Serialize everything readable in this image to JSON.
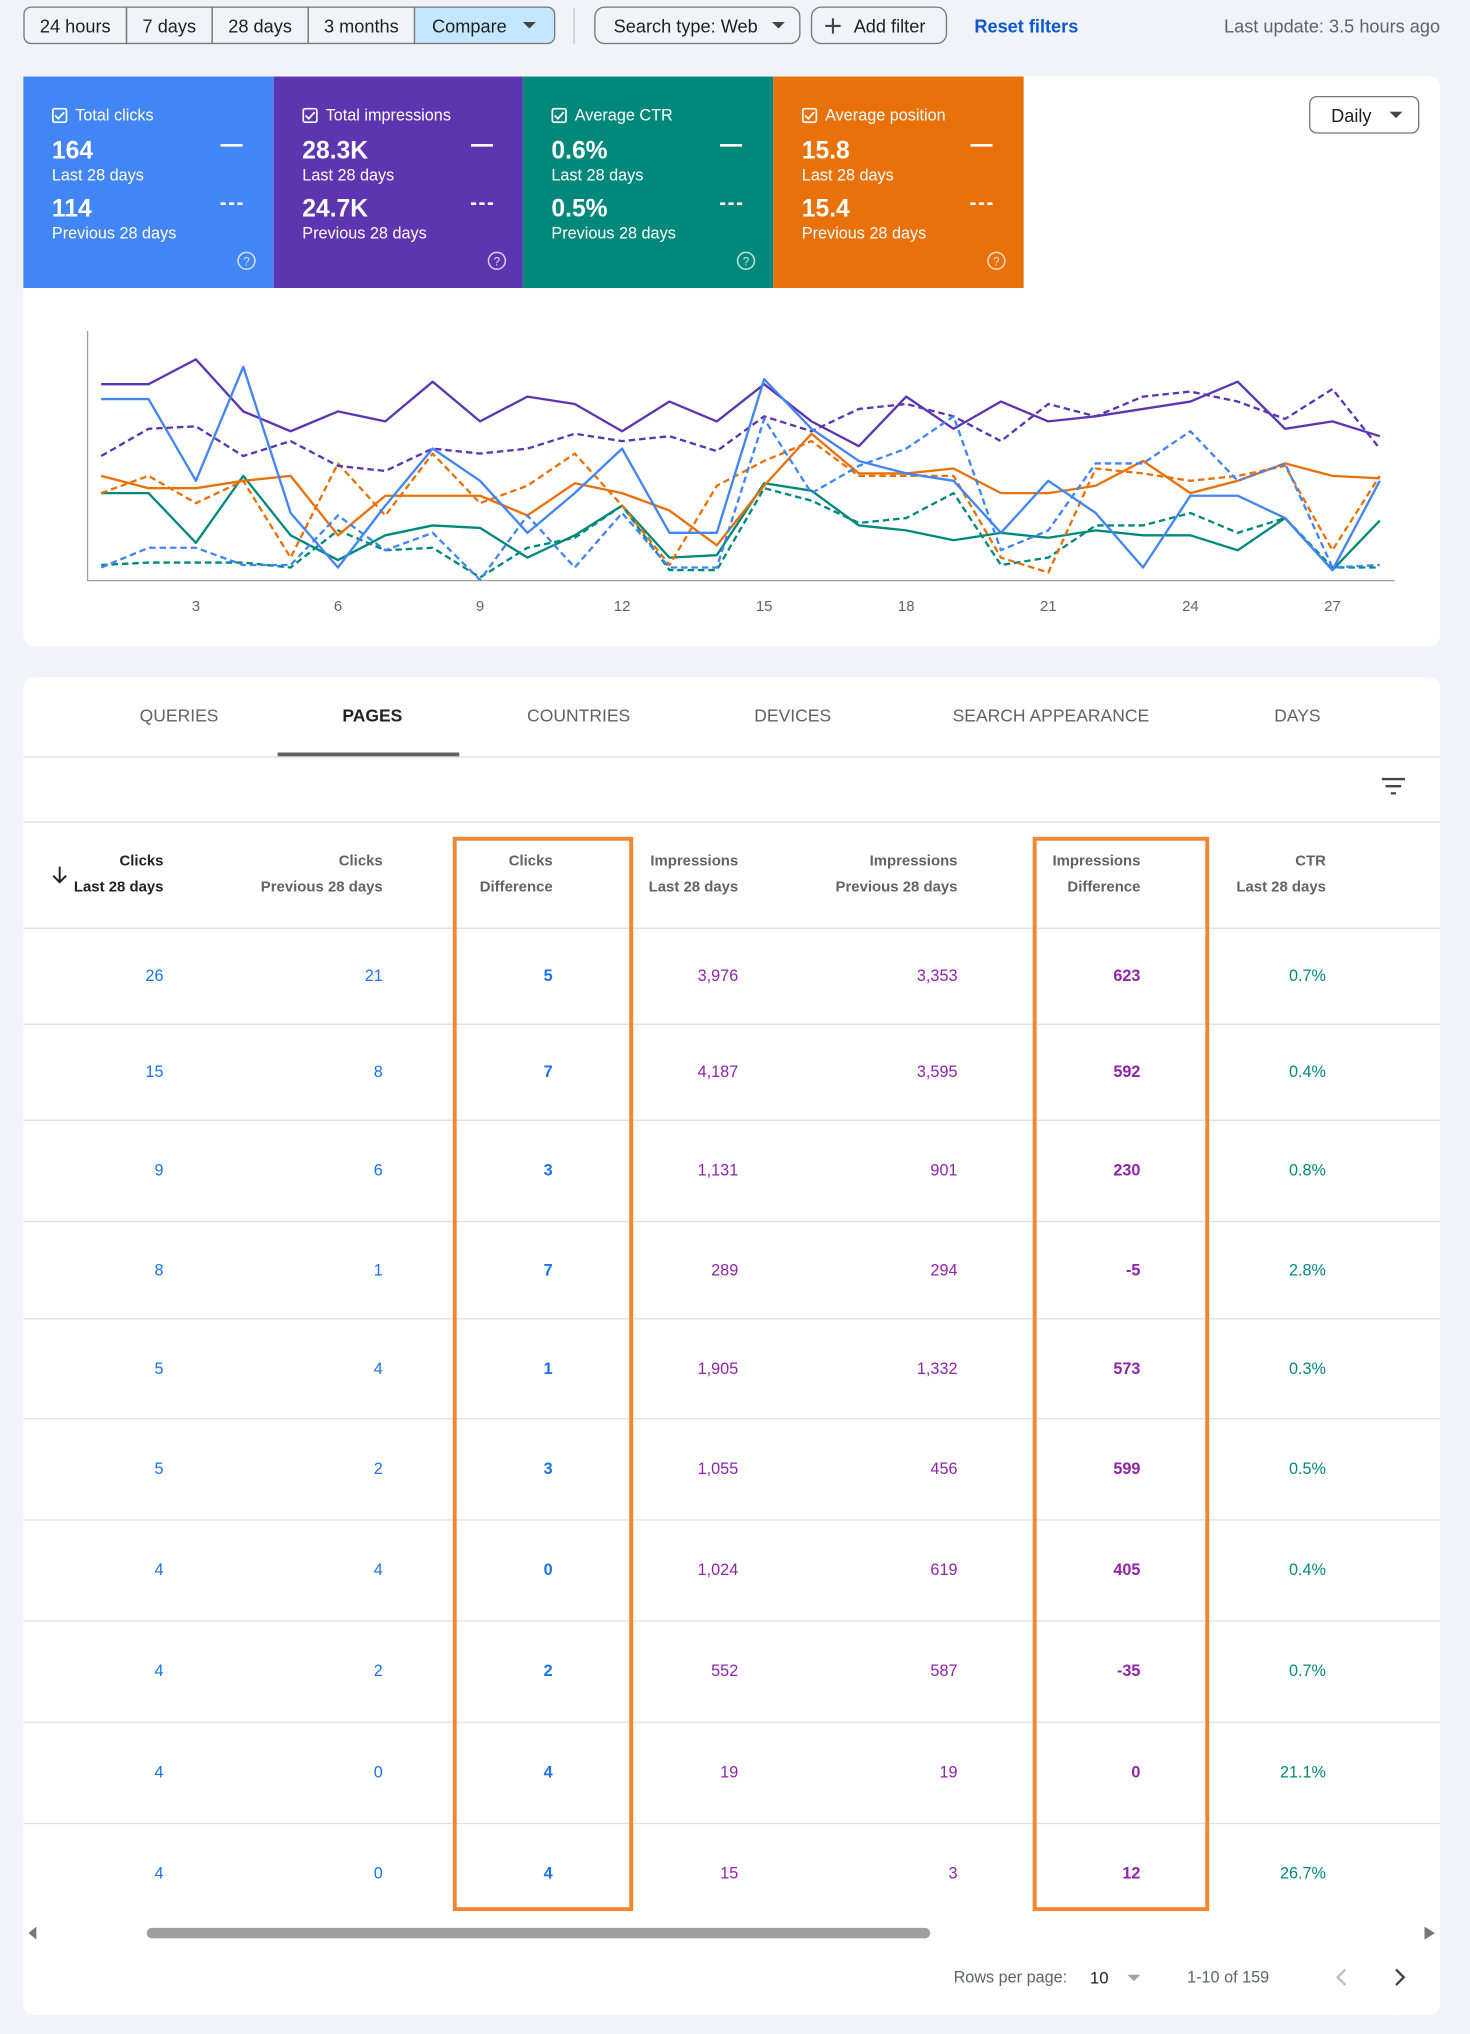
{
  "toolbar": {
    "ranges": [
      "24 hours",
      "7 days",
      "28 days",
      "3 months",
      "Compare"
    ],
    "active_range": 4,
    "search_type": "Search type: Web",
    "add_filter": "Add filter",
    "reset": "Reset filters",
    "last_update": "Last update: 3.5 hours ago"
  },
  "cards": [
    {
      "title": "Total clicks",
      "current": "164",
      "current_label": "Last 28 days",
      "previous": "114",
      "previous_label": "Previous 28 days",
      "color": "#4285f4"
    },
    {
      "title": "Total impressions",
      "current": "28.3K",
      "current_label": "Last 28 days",
      "previous": "24.7K",
      "previous_label": "Previous 28 days",
      "color": "#5e35b1"
    },
    {
      "title": "Average CTR",
      "current": "0.6%",
      "current_label": "Last 28 days",
      "previous": "0.5%",
      "previous_label": "Previous 28 days",
      "color": "#00897b"
    },
    {
      "title": "Average position",
      "current": "15.8",
      "current_label": "Last 28 days",
      "previous": "15.4",
      "previous_label": "Previous 28 days",
      "color": "#e8710a"
    }
  ],
  "granularity": "Daily",
  "chart_data": {
    "type": "line",
    "x": [
      1,
      2,
      3,
      4,
      5,
      6,
      7,
      8,
      9,
      10,
      11,
      12,
      13,
      14,
      15,
      16,
      17,
      18,
      19,
      20,
      21,
      22,
      23,
      24,
      25,
      26,
      27,
      28
    ],
    "xlim": [
      1,
      28
    ],
    "xticks": [
      3,
      6,
      9,
      12,
      15,
      18,
      21,
      24,
      27
    ],
    "ylim": [
      0,
      100
    ],
    "series": [
      {
        "color": "#4285f4",
        "dashed": false,
        "values": [
          73,
          73,
          40,
          86,
          27,
          5,
          30,
          53,
          40,
          19,
          35,
          53,
          19,
          19,
          81,
          61,
          48,
          43,
          40,
          19,
          40,
          27,
          5,
          34,
          34,
          25,
          4,
          40
        ]
      },
      {
        "color": "#4285f4",
        "dashed": true,
        "values": [
          5,
          13,
          13,
          6,
          6,
          26,
          12,
          19,
          0,
          26,
          5,
          27,
          5,
          5,
          65,
          35,
          46,
          53,
          66,
          12,
          20,
          47,
          47,
          60,
          40,
          47,
          5,
          6
        ]
      },
      {
        "color": "#5e35b1",
        "dashed": false,
        "values": [
          79,
          79,
          89,
          68,
          60,
          68,
          64,
          80,
          64,
          74,
          71,
          60,
          72,
          64,
          79,
          64,
          54,
          74,
          61,
          72,
          64,
          66,
          69,
          72,
          80,
          61,
          64,
          58
        ]
      },
      {
        "color": "#5e35b1",
        "dashed": true,
        "values": [
          50,
          61,
          62,
          50,
          56,
          46,
          44,
          53,
          51,
          53,
          59,
          56,
          58,
          52,
          66,
          60,
          69,
          71,
          66,
          56,
          71,
          66,
          74,
          76,
          72,
          65,
          77,
          53
        ]
      },
      {
        "color": "#e8710a",
        "dashed": false,
        "values": [
          42,
          37,
          37,
          40,
          42,
          18,
          34,
          34,
          34,
          26,
          39,
          35,
          28,
          14,
          38,
          59,
          43,
          43,
          45,
          35,
          35,
          38,
          48,
          35,
          40,
          47,
          42,
          41
        ]
      },
      {
        "color": "#e8710a",
        "dashed": true,
        "values": [
          35,
          42,
          31,
          40,
          9,
          47,
          26,
          51,
          31,
          38,
          51,
          30,
          6,
          38,
          48,
          56,
          42,
          42,
          42,
          9,
          3,
          45,
          43,
          40,
          42,
          46,
          12,
          42
        ]
      },
      {
        "color": "#00897b",
        "dashed": false,
        "values": [
          35,
          35,
          15,
          42,
          18,
          8,
          18,
          22,
          21,
          9,
          18,
          30,
          9,
          10,
          39,
          36,
          22,
          20,
          16,
          19,
          17,
          20,
          18,
          18,
          12,
          25,
          4,
          24
        ]
      },
      {
        "color": "#00897b",
        "dashed": true,
        "values": [
          6,
          7,
          7,
          7,
          5,
          20,
          12,
          13,
          1,
          13,
          17,
          30,
          4,
          4,
          37,
          32,
          23,
          25,
          35,
          6,
          9,
          22,
          22,
          27,
          19,
          25,
          5,
          5
        ]
      }
    ]
  },
  "tabs": [
    "QUERIES",
    "PAGES",
    "COUNTRIES",
    "DEVICES",
    "SEARCH APPEARANCE",
    "DAYS"
  ],
  "active_tab": 1,
  "table": {
    "columns": [
      [
        "Clicks",
        "Last 28 days"
      ],
      [
        "Clicks",
        "Previous 28 days"
      ],
      [
        "Clicks",
        "Difference"
      ],
      [
        "Impressions",
        "Last 28 days"
      ],
      [
        "Impressions",
        "Previous 28 days"
      ],
      [
        "Impressions",
        "Difference"
      ],
      [
        "CTR",
        "Last 28 days"
      ]
    ],
    "highlight_columns": [
      2,
      5
    ],
    "rows": [
      [
        "26",
        "21",
        "5",
        "3,976",
        "3,353",
        "623",
        "0.7%"
      ],
      [
        "15",
        "8",
        "7",
        "4,187",
        "3,595",
        "592",
        "0.4%"
      ],
      [
        "9",
        "6",
        "3",
        "1,131",
        "901",
        "230",
        "0.8%"
      ],
      [
        "8",
        "1",
        "7",
        "289",
        "294",
        "-5",
        "2.8%"
      ],
      [
        "5",
        "4",
        "1",
        "1,905",
        "1,332",
        "573",
        "0.3%"
      ],
      [
        "5",
        "2",
        "3",
        "1,055",
        "456",
        "599",
        "0.5%"
      ],
      [
        "4",
        "4",
        "0",
        "1,024",
        "619",
        "405",
        "0.4%"
      ],
      [
        "4",
        "2",
        "2",
        "552",
        "587",
        "-35",
        "0.7%"
      ],
      [
        "4",
        "0",
        "4",
        "19",
        "19",
        "0",
        "21.1%"
      ],
      [
        "4",
        "0",
        "4",
        "15",
        "3",
        "12",
        "26.7%"
      ]
    ]
  },
  "pagination": {
    "rows_per_page_label": "Rows per page:",
    "rows_per_page": "10",
    "range": "1-10 of 159"
  }
}
